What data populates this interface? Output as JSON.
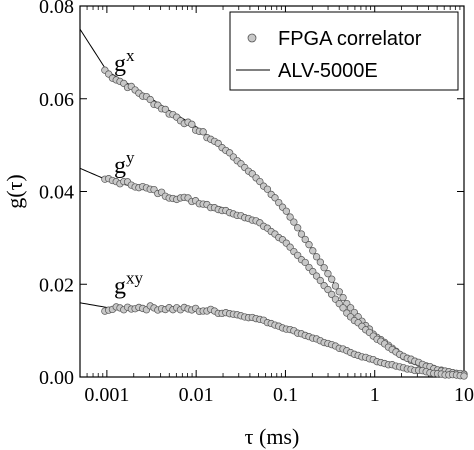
{
  "chart_data": {
    "type": "scatter",
    "xlabel": "τ (ms)",
    "ylabel": "g(τ)",
    "x_scale": "log",
    "xlim": [
      0.0005,
      10
    ],
    "ylim": [
      0,
      0.08
    ],
    "x_ticks": [
      0.001,
      0.01,
      0.1,
      1,
      10
    ],
    "x_tick_labels": [
      "0.001",
      "0.01",
      "0.1",
      "1",
      "10"
    ],
    "y_ticks": [
      0,
      0.02,
      0.04,
      0.06,
      0.08
    ],
    "y_tick_labels": [
      "0.00",
      "0.02",
      "0.04",
      "0.06",
      "0.08"
    ],
    "legend": {
      "position": "top-right",
      "entries": [
        {
          "label": "FPGA correlator",
          "marker": "circle",
          "color": "#c8c8c8"
        },
        {
          "label": "ALV-5000E",
          "marker": "line",
          "color": "#000000"
        }
      ]
    },
    "series": [
      {
        "name": "g",
        "superscript": "x",
        "label_anchor": [
          0.0012,
          0.066
        ],
        "x": [
          0.0005,
          0.001,
          0.002,
          0.005,
          0.01,
          0.02,
          0.05,
          0.1,
          0.2,
          0.5,
          1,
          2,
          5,
          10
        ],
        "fpga": [
          0.0745,
          0.0655,
          0.062,
          0.057,
          0.0535,
          0.0495,
          0.0425,
          0.036,
          0.0275,
          0.0155,
          0.009,
          0.0045,
          0.0015,
          0.0005
        ],
        "alv": [
          0.075,
          0.066,
          0.0625,
          0.0575,
          0.054,
          0.0495,
          0.0425,
          0.036,
          0.0275,
          0.0155,
          0.009,
          0.0045,
          0.0015,
          0.0005
        ]
      },
      {
        "name": "g",
        "superscript": "y",
        "label_anchor": [
          0.0012,
          0.044
        ],
        "x": [
          0.0005,
          0.001,
          0.002,
          0.005,
          0.01,
          0.02,
          0.05,
          0.1,
          0.2,
          0.5,
          1,
          2,
          5,
          10
        ],
        "fpga": [
          0.045,
          0.0425,
          0.0415,
          0.039,
          0.038,
          0.036,
          0.0335,
          0.029,
          0.023,
          0.0135,
          0.0085,
          0.0045,
          0.0015,
          0.0005
        ],
        "alv": [
          0.045,
          0.0425,
          0.041,
          0.039,
          0.038,
          0.0365,
          0.0335,
          0.029,
          0.023,
          0.0135,
          0.0085,
          0.0045,
          0.0015,
          0.0005
        ]
      },
      {
        "name": "g",
        "superscript": "xy",
        "label_anchor": [
          0.0012,
          0.018
        ],
        "x": [
          0.0005,
          0.001,
          0.002,
          0.005,
          0.01,
          0.02,
          0.05,
          0.1,
          0.2,
          0.5,
          1,
          2,
          5,
          10
        ],
        "fpga": [
          0.016,
          0.0145,
          0.015,
          0.0148,
          0.0145,
          0.014,
          0.0125,
          0.0105,
          0.0085,
          0.0055,
          0.0035,
          0.002,
          0.0007,
          0.0002
        ],
        "alv": [
          0.016,
          0.015,
          0.015,
          0.0148,
          0.0145,
          0.014,
          0.0125,
          0.0105,
          0.0085,
          0.0055,
          0.0035,
          0.002,
          0.0007,
          0.0002
        ]
      }
    ]
  }
}
